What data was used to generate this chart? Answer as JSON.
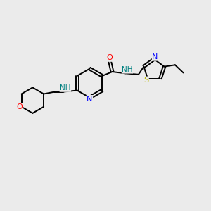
{
  "bg_color": "#ebebeb",
  "bond_color": "#000000",
  "atom_colors": {
    "O": "#ff0000",
    "N": "#0000ff",
    "S": "#b8b800",
    "NH": "#008080"
  },
  "bond_lw": 1.4,
  "font_size": 8.0
}
